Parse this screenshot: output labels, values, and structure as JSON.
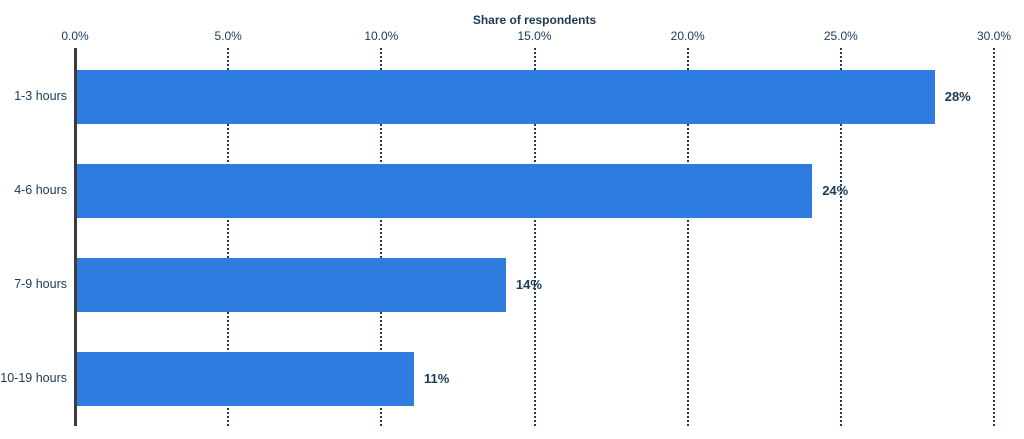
{
  "chart_data": {
    "type": "bar",
    "orientation": "horizontal",
    "title": "Share of respondents",
    "categories": [
      "1-3 hours",
      "4-6 hours",
      "7-9 hours",
      "10-19 hours"
    ],
    "values": [
      28,
      24,
      14,
      11
    ],
    "value_labels": [
      "28%",
      "24%",
      "14%",
      "11%"
    ],
    "x_ticks": [
      "0.0%",
      "5.0%",
      "10.0%",
      "15.0%",
      "20.0%",
      "25.0%",
      "30.0%"
    ],
    "x_tick_values": [
      0,
      5,
      10,
      15,
      20,
      25,
      30
    ],
    "xlim": [
      0,
      30
    ],
    "xlabel": "Share of respondents",
    "ylabel": "",
    "grid": "vertical-dotted",
    "legend": "none",
    "colors": {
      "bar": "#2E7CDF",
      "text": "#1B3A57",
      "axis_line": "#3C3C3C",
      "gridline": "#1E3D5C",
      "background": "#FFFFFF"
    }
  }
}
